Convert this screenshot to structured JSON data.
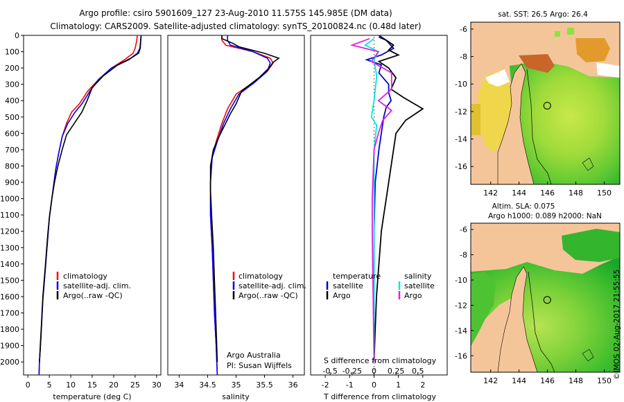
{
  "header": {
    "line1": "Argo profile: csiro 5901609_127 23-Aug-2010 11.575S 145.985E (DM data)",
    "line2": "Climatology: CARS2009. Satellite-adjusted climatology: synTS_20100824.nc (0.48d later)"
  },
  "colors": {
    "climatology": "#ff0000",
    "satellite_adj": "#0000ff",
    "argo": "#000000",
    "t_satellite": "#0000cc",
    "s_satellite": "#00e5e5",
    "s_argo": "#e020e0",
    "land": "#f5c59a"
  },
  "maps": {
    "sst_title": "sat. SST: 26.5 Argo: 26.4",
    "sla_title_1": "Altim. SLA: 0.075",
    "sla_title_2": "Argo h1000: 0.089 h2000: NaN",
    "lat_labels": [
      "-6",
      "-8",
      "-10",
      "-12",
      "-14",
      "-16"
    ],
    "lon_labels": [
      "142",
      "144",
      "146",
      "148",
      "150"
    ],
    "argo_position": {
      "lon": 145.985,
      "lat": -11.575
    },
    "credit": "©IMOS 02-Aug-2017 21:55:55"
  },
  "chart_data": [
    {
      "type": "line",
      "title": "Temperature profile",
      "xlabel": "temperature (deg C)",
      "ylabel": "",
      "xlim": [
        -1,
        31
      ],
      "ylim": [
        2080,
        0
      ],
      "xticks": [
        "0",
        "5",
        "10",
        "15",
        "20",
        "25",
        "30"
      ],
      "yticks": [
        "0",
        "100",
        "200",
        "300",
        "400",
        "500",
        "600",
        "700",
        "800",
        "900",
        "1000",
        "1100",
        "1200",
        "1300",
        "1400",
        "1500",
        "1600",
        "1700",
        "1800",
        "1900",
        "2000"
      ],
      "legend": [
        "climatology",
        "satellite-adj. clim.",
        "Argo(..raw -QC)"
      ],
      "series": [
        {
          "name": "climatology",
          "points": [
            [
              25.5,
              0
            ],
            [
              25.4,
              30
            ],
            [
              25,
              80
            ],
            [
              24.5,
              110
            ],
            [
              22.5,
              150
            ],
            [
              19.5,
              200
            ],
            [
              16.5,
              270
            ],
            [
              14,
              340
            ],
            [
              12,
              420
            ],
            [
              10.2,
              470
            ],
            [
              9,
              540
            ],
            [
              8,
              620
            ],
            [
              7.2,
              720
            ],
            [
              6.5,
              820
            ],
            [
              6,
              920
            ],
            [
              5.5,
              1020
            ],
            [
              5,
              1120
            ],
            [
              4.7,
              1220
            ],
            [
              4.4,
              1320
            ],
            [
              4.1,
              1420
            ],
            [
              3.8,
              1520
            ],
            [
              3.5,
              1620
            ],
            [
              3.3,
              1720
            ],
            [
              3.1,
              1820
            ],
            [
              2.9,
              1920
            ],
            [
              2.7,
              2000
            ],
            [
              2.6,
              2080
            ]
          ]
        },
        {
          "name": "satellite-adj. clim.",
          "points": [
            [
              26.4,
              0
            ],
            [
              26.3,
              30
            ],
            [
              26.1,
              80
            ],
            [
              25.5,
              110
            ],
            [
              23.5,
              150
            ],
            [
              19.5,
              200
            ],
            [
              16.5,
              270
            ],
            [
              14.5,
              340
            ],
            [
              12.6,
              420
            ],
            [
              11,
              470
            ],
            [
              9.3,
              540
            ],
            [
              8,
              620
            ],
            [
              7.2,
              720
            ],
            [
              6.5,
              820
            ],
            [
              6,
              920
            ],
            [
              5.5,
              1020
            ],
            [
              5,
              1120
            ],
            [
              4.7,
              1220
            ],
            [
              4.4,
              1320
            ],
            [
              4.1,
              1420
            ],
            [
              3.8,
              1520
            ],
            [
              3.5,
              1620
            ],
            [
              3.3,
              1720
            ],
            [
              3.1,
              1820
            ],
            [
              2.9,
              1920
            ],
            [
              2.7,
              2000
            ],
            [
              2.6,
              2080
            ]
          ]
        },
        {
          "name": "Argo(..raw -QC)",
          "points": [
            [
              26.4,
              5
            ],
            [
              26.3,
              40
            ],
            [
              26.2,
              80
            ],
            [
              25.8,
              110
            ],
            [
              24,
              140
            ],
            [
              21,
              180
            ],
            [
              17.5,
              250
            ],
            [
              15,
              320
            ],
            [
              13.8,
              400
            ],
            [
              12.6,
              470
            ],
            [
              10.8,
              540
            ],
            [
              9,
              610
            ],
            [
              8,
              700
            ],
            [
              7,
              800
            ],
            [
              6.2,
              900
            ],
            [
              5.6,
              1000
            ],
            [
              5.1,
              1100
            ],
            [
              4.7,
              1200
            ],
            [
              4.4,
              1300
            ],
            [
              4.1,
              1400
            ],
            [
              3.8,
              1500
            ],
            [
              3.5,
              1600
            ],
            [
              3.3,
              1700
            ],
            [
              3.1,
              1800
            ],
            [
              2.9,
              1900
            ],
            [
              2.7,
              2000
            ]
          ]
        }
      ]
    },
    {
      "type": "line",
      "title": "Salinity profile",
      "xlabel": "salinity",
      "xlim": [
        33.8,
        36.2
      ],
      "ylim": [
        2080,
        0
      ],
      "xticks": [
        "34",
        "34.5",
        "35",
        "35.5",
        "36"
      ],
      "legend": [
        "climatology",
        "satellite-adj. clim.",
        "Argo(..raw -QC)"
      ],
      "annotation_1": "Argo Australia",
      "annotation_2": "PI: Susan Wijffels",
      "series": [
        {
          "name": "climatology",
          "points": [
            [
              34.75,
              0
            ],
            [
              34.75,
              30
            ],
            [
              34.82,
              60
            ],
            [
              35.3,
              100
            ],
            [
              35.6,
              140
            ],
            [
              35.65,
              170
            ],
            [
              35.55,
              220
            ],
            [
              35.3,
              290
            ],
            [
              35.0,
              360
            ],
            [
              34.85,
              450
            ],
            [
              34.75,
              540
            ],
            [
              34.65,
              650
            ],
            [
              34.58,
              750
            ],
            [
              34.55,
              900
            ],
            [
              34.55,
              1100
            ],
            [
              34.58,
              1300
            ],
            [
              34.6,
              1500
            ],
            [
              34.62,
              1700
            ],
            [
              34.65,
              1900
            ],
            [
              34.67,
              2080
            ]
          ]
        },
        {
          "name": "satellite-adj. clim.",
          "points": [
            [
              34.85,
              0
            ],
            [
              34.85,
              30
            ],
            [
              34.9,
              60
            ],
            [
              35.3,
              100
            ],
            [
              35.55,
              140
            ],
            [
              35.6,
              170
            ],
            [
              35.55,
              220
            ],
            [
              35.32,
              290
            ],
            [
              35.05,
              360
            ],
            [
              34.9,
              450
            ],
            [
              34.78,
              540
            ],
            [
              34.67,
              650
            ],
            [
              34.58,
              750
            ],
            [
              34.55,
              900
            ],
            [
              34.55,
              1100
            ],
            [
              34.58,
              1300
            ],
            [
              34.6,
              1500
            ],
            [
              34.62,
              1700
            ],
            [
              34.65,
              1900
            ],
            [
              34.67,
              2080
            ]
          ]
        },
        {
          "name": "Argo(..raw -QC)",
          "points": [
            [
              34.75,
              0
            ],
            [
              34.75,
              20
            ],
            [
              34.95,
              50
            ],
            [
              35.05,
              70
            ],
            [
              35.5,
              110
            ],
            [
              35.75,
              140
            ],
            [
              35.65,
              165
            ],
            [
              35.58,
              200
            ],
            [
              35.4,
              260
            ],
            [
              35.1,
              340
            ],
            [
              35.0,
              420
            ],
            [
              34.9,
              480
            ],
            [
              34.8,
              550
            ],
            [
              34.7,
              620
            ],
            [
              34.6,
              700
            ],
            [
              34.55,
              800
            ],
            [
              34.55,
              950
            ],
            [
              34.57,
              1100
            ],
            [
              34.6,
              1300
            ],
            [
              34.62,
              1500
            ],
            [
              34.64,
              1700
            ],
            [
              34.66,
              1900
            ],
            [
              34.67,
              2000
            ]
          ]
        }
      ]
    },
    {
      "type": "line",
      "title": "Difference from climatology",
      "xlabel": "T difference from climatology",
      "xlabel_top": "S difference from climatology",
      "xlim": [
        -2.6,
        3.0
      ],
      "ylim": [
        2080,
        0
      ],
      "xticks_T": [
        "-2",
        "-1",
        "0",
        "1",
        "2"
      ],
      "xticks_S": [
        "-0.5",
        "-0.25",
        "0",
        "0.25",
        "0.5"
      ],
      "legend_temperature_title": "temperature",
      "legend_salinity_title": "salinity",
      "legend": [
        "satellite",
        "Argo",
        "satellite",
        "Argo"
      ],
      "series": [
        {
          "name": "T satellite",
          "points": [
            [
              0.2,
              0
            ],
            [
              0.5,
              30
            ],
            [
              0.8,
              80
            ],
            [
              0.3,
              120
            ],
            [
              -0.3,
              150
            ],
            [
              0.3,
              180
            ],
            [
              0.2,
              230
            ],
            [
              0.6,
              300
            ],
            [
              0.6,
              350
            ],
            [
              0.7,
              400
            ],
            [
              0.5,
              440
            ],
            [
              0.4,
              500
            ],
            [
              0.3,
              600
            ],
            [
              0.2,
              700
            ],
            [
              0.05,
              900
            ],
            [
              0,
              1200
            ],
            [
              0,
              2000
            ]
          ]
        },
        {
          "name": "T Argo",
          "points": [
            [
              0.2,
              10
            ],
            [
              0.5,
              30
            ],
            [
              0.8,
              60
            ],
            [
              0.6,
              90
            ],
            [
              1.0,
              120
            ],
            [
              0.2,
              160
            ],
            [
              0.6,
              200
            ],
            [
              0.9,
              260
            ],
            [
              0.7,
              330
            ],
            [
              1.2,
              380
            ],
            [
              2.0,
              450
            ],
            [
              1.3,
              520
            ],
            [
              0.9,
              600
            ],
            [
              0.8,
              700
            ],
            [
              0.7,
              800
            ],
            [
              0.6,
              900
            ],
            [
              0.5,
              1000
            ],
            [
              0.4,
              1100
            ],
            [
              0.3,
              1200
            ],
            [
              0.2,
              1400
            ],
            [
              0.1,
              1600
            ],
            [
              0.05,
              1800
            ],
            [
              0,
              2000
            ]
          ]
        },
        {
          "name": "S satellite",
          "points": [
            [
              0,
              20
            ],
            [
              -0.1,
              60
            ],
            [
              0.05,
              100
            ],
            [
              0,
              150
            ],
            [
              0.03,
              250
            ],
            [
              0,
              400
            ],
            [
              -0.03,
              500
            ],
            [
              0.03,
              550
            ],
            [
              0,
              700
            ],
            [
              0,
              2000
            ]
          ]
        },
        {
          "name": "S Argo",
          "points": [
            [
              -0.05,
              20
            ],
            [
              -0.25,
              60
            ],
            [
              0.05,
              100
            ],
            [
              -0.03,
              160
            ],
            [
              0.2,
              230
            ],
            [
              0.2,
              330
            ],
            [
              0.05,
              400
            ],
            [
              0.2,
              460
            ],
            [
              0.1,
              520
            ],
            [
              0.05,
              600
            ],
            [
              0,
              700
            ],
            [
              -0.02,
              1000
            ],
            [
              -0.02,
              1200
            ],
            [
              0,
              2000
            ]
          ]
        }
      ]
    }
  ]
}
